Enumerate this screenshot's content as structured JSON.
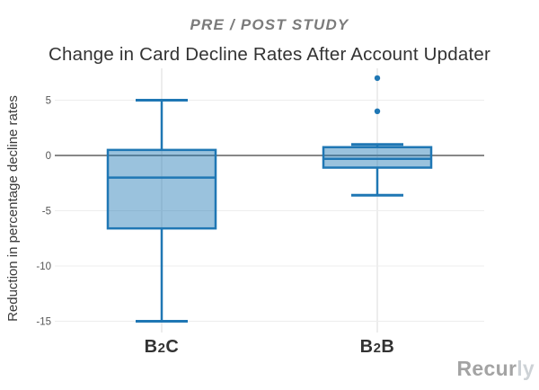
{
  "chart_data": {
    "type": "boxplot",
    "pretitle": "PRE / POST STUDY",
    "title": "Change in Card Decline Rates After Account Updater",
    "ylabel": "Reduction in percentage decline rates",
    "xlabel": "",
    "categories": [
      "B2C",
      "B2B"
    ],
    "yticks": [
      5,
      0,
      -5,
      -10,
      -15
    ],
    "ylim": [
      -16,
      8
    ],
    "grid": true,
    "zero_line_value": 0,
    "legend_position": "none",
    "series": [
      {
        "name": "B2C",
        "whisker_low": -15,
        "q1": -6.6,
        "median": -2,
        "q3": 0.5,
        "whisker_high": 5,
        "outliers": []
      },
      {
        "name": "B2B",
        "whisker_low": -3.6,
        "q1": -1.1,
        "median": -0.3,
        "q3": 0.75,
        "whisker_high": 1,
        "outliers": [
          4,
          7
        ]
      }
    ],
    "colors": {
      "box_border": "#1f77b4",
      "box_fill": "rgba(31,119,180,0.45)",
      "zero_line": "#888888",
      "grid_line": "#ededed"
    }
  },
  "footer": {
    "brand": "Recurly",
    "brand_primary": "Recur",
    "brand_secondary": "ly"
  }
}
